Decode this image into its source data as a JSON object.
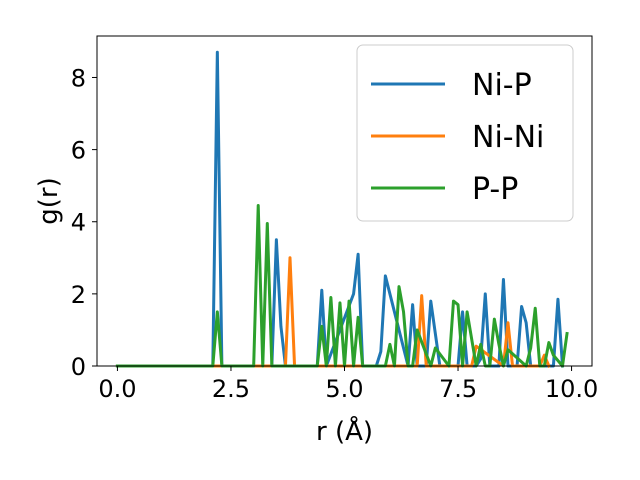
{
  "chart_data": {
    "type": "line",
    "title": "",
    "xlabel": "r (Å)",
    "ylabel": "g(r)",
    "xlim": [
      -0.45,
      10.45
    ],
    "ylim": [
      0,
      9.15
    ],
    "xticks": [
      0.0,
      2.5,
      5.0,
      7.5,
      10.0
    ],
    "xtick_labels": [
      "0.0",
      "2.5",
      "5.0",
      "7.5",
      "10.0"
    ],
    "yticks": [
      0,
      2,
      4,
      6,
      8
    ],
    "ytick_labels": [
      "0",
      "2",
      "4",
      "6",
      "8"
    ],
    "grid": false,
    "legend_position": "top-right",
    "series": [
      {
        "name": "Ni-P",
        "color": "#1f77b4",
        "x": [
          0.0,
          2.1,
          2.2,
          2.3,
          3.4,
          3.5,
          3.6,
          3.7,
          4.4,
          4.5,
          4.6,
          5.2,
          5.3,
          5.4,
          5.5,
          5.7,
          5.8,
          5.9,
          6.4,
          6.5,
          6.6,
          6.8,
          6.9,
          7.0,
          7.1,
          7.5,
          7.6,
          7.7,
          7.9,
          8.0,
          8.1,
          8.2,
          8.4,
          8.5,
          8.6,
          8.7,
          8.8,
          8.9,
          9.0,
          9.1,
          9.6,
          9.7,
          9.8
        ],
        "y": [
          0.0,
          0.0,
          8.7,
          0.0,
          0.0,
          3.5,
          1.1,
          0.0,
          0.0,
          2.1,
          0.0,
          2.0,
          3.1,
          0.0,
          0.0,
          0.0,
          0.4,
          2.5,
          0.0,
          1.7,
          0.0,
          0.0,
          1.8,
          0.9,
          0.0,
          0.0,
          1.5,
          0.0,
          0.0,
          0.2,
          2.0,
          0.0,
          0.0,
          2.4,
          0.0,
          0.0,
          0.0,
          1.65,
          1.2,
          0.0,
          0.0,
          1.85,
          0.0
        ]
      },
      {
        "name": "Ni-Ni",
        "color": "#ff7f0e",
        "x": [
          0.0,
          3.7,
          3.8,
          3.9,
          6.6,
          6.7,
          6.8,
          7.8,
          7.9,
          8.5,
          8.6,
          8.7,
          9.3,
          9.4,
          9.5
        ],
        "y": [
          0.0,
          0.0,
          3.0,
          0.0,
          0.0,
          1.95,
          0.0,
          0.0,
          0.55,
          0.0,
          1.2,
          0.0,
          0.0,
          0.3,
          0.0
        ]
      },
      {
        "name": "P-P",
        "color": "#2ca02c",
        "x": [
          0.0,
          2.1,
          2.2,
          2.3,
          3.0,
          3.1,
          3.2,
          3.3,
          3.4,
          4.4,
          4.5,
          4.6,
          4.7,
          4.8,
          4.9,
          5.0,
          5.1,
          5.2,
          5.3,
          5.4,
          5.9,
          6.0,
          6.1,
          6.2,
          6.3,
          6.4,
          6.5,
          6.6,
          6.9,
          7.0,
          7.3,
          7.4,
          7.5,
          7.6,
          7.7,
          7.9,
          8.0,
          8.1,
          8.2,
          8.3,
          8.4,
          8.5,
          8.6,
          9.0,
          9.1,
          9.2,
          9.3,
          9.4,
          9.5,
          9.6,
          9.8,
          9.9
        ],
        "y": [
          0.0,
          0.0,
          1.5,
          0.0,
          0.0,
          4.45,
          0.0,
          3.95,
          0.0,
          0.0,
          1.1,
          0.0,
          1.9,
          0.0,
          1.75,
          0.0,
          1.8,
          0.0,
          1.35,
          0.0,
          0.0,
          0.6,
          0.0,
          2.2,
          1.5,
          0.0,
          0.0,
          1.0,
          0.0,
          0.5,
          0.0,
          1.8,
          1.7,
          0.0,
          1.5,
          0.0,
          0.6,
          0.0,
          0.0,
          1.3,
          0.6,
          0.0,
          0.45,
          0.0,
          0.5,
          1.6,
          0.0,
          0.0,
          0.65,
          0.3,
          0.0,
          0.9
        ]
      }
    ]
  }
}
